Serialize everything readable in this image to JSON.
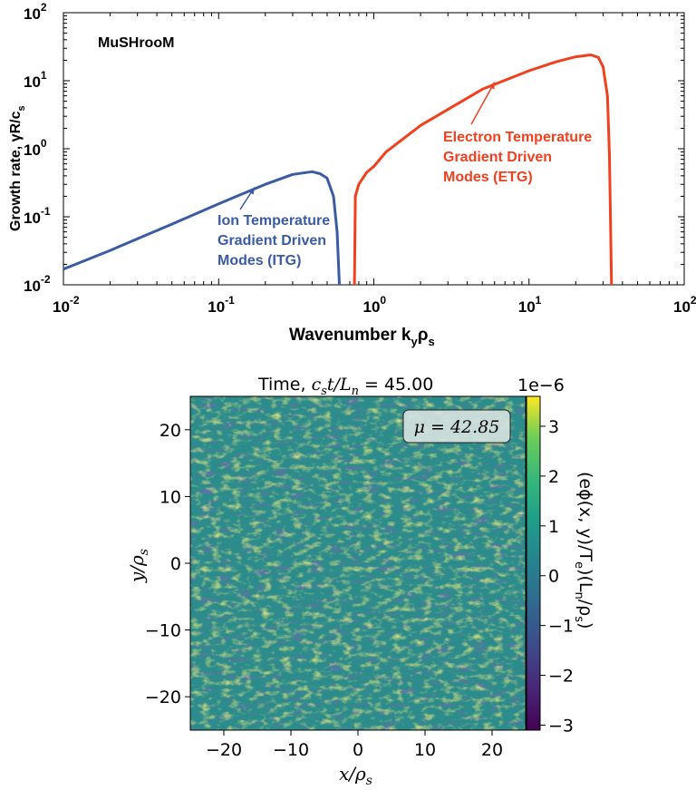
{
  "chart_data": [
    {
      "type": "line",
      "title": "",
      "annotation_top_left": "MuSHrooM",
      "xlabel": "Wavenumber  k",
      "xlabel_sub": "y",
      "xlabel_tail": "ρ",
      "xlabel_tail_sub": "s",
      "ylabel": "Growth rate, γR/c",
      "ylabel_sub": "s",
      "xscale": "log",
      "yscale": "log",
      "xlim": [
        0.01,
        100
      ],
      "ylim": [
        0.01,
        100
      ],
      "x_ticks": [
        {
          "base": "10",
          "exp": "-2"
        },
        {
          "base": "10",
          "exp": "-1"
        },
        {
          "base": "10",
          "exp": "0"
        },
        {
          "base": "10",
          "exp": "1"
        },
        {
          "base": "10",
          "exp": "2"
        }
      ],
      "y_ticks": [
        {
          "base": "10",
          "exp": "-2"
        },
        {
          "base": "10",
          "exp": "-1"
        },
        {
          "base": "10",
          "exp": "0"
        },
        {
          "base": "10",
          "exp": "1"
        },
        {
          "base": "10",
          "exp": "2"
        }
      ],
      "series": [
        {
          "color": "#3b5ba5",
          "x": [
            0.01,
            0.02,
            0.05,
            0.1,
            0.2,
            0.3,
            0.4,
            0.45,
            0.5,
            0.55,
            0.58,
            0.6
          ],
          "y": [
            0.017,
            0.032,
            0.078,
            0.155,
            0.3,
            0.42,
            0.46,
            0.43,
            0.37,
            0.2,
            0.06,
            0.01
          ]
        },
        {
          "color": "#f0401f",
          "x": [
            0.75,
            0.76,
            0.8,
            0.9,
            1.0,
            1.2,
            2,
            5,
            10,
            15,
            20,
            25,
            28,
            30,
            32,
            33,
            34
          ],
          "y": [
            0.01,
            0.2,
            0.3,
            0.45,
            0.55,
            0.9,
            2.2,
            7.5,
            14,
            19,
            22.5,
            24,
            22,
            16,
            6,
            0.8,
            0.01
          ]
        }
      ],
      "annotations": [
        {
          "lines": [
            "Ion Temperature",
            "Gradient Driven",
            "Modes (ITG)"
          ],
          "color": "#3b5ba5",
          "point_to": {
            "x": 0.17,
            "y": 0.27
          }
        },
        {
          "lines": [
            "Electron Temperature",
            "Gradient Driven",
            "Modes (ETG)"
          ],
          "color": "#f0401f",
          "point_to": {
            "x": 6,
            "y": 9.5
          }
        }
      ]
    },
    {
      "type": "heatmap",
      "title": "Time, ",
      "title_math": "c",
      "title_math_sub": "s",
      "title_math_tail": "t/L",
      "title_math_tail_sub": "n",
      "title_value": " = 45.00",
      "xlabel": "x/ρ",
      "xlabel_sub": "s",
      "ylabel": "y/ρ",
      "ylabel_sub": "s",
      "xlim": [
        -25,
        25
      ],
      "ylim": [
        -25,
        25
      ],
      "x_ticks": [
        "−20",
        "−10",
        "0",
        "10",
        "20"
      ],
      "x_tick_values": [
        -20,
        -10,
        0,
        10,
        20
      ],
      "y_ticks": [
        "20",
        "10",
        "0",
        "−10",
        "−20"
      ],
      "y_tick_values": [
        20,
        10,
        0,
        -10,
        -20
      ],
      "colormap": "viridis",
      "legend_box": "μ = 42.85",
      "colorbar": {
        "label": "(eϕ(x, y)/T",
        "label_sub": "e",
        "label_mid": ")(L",
        "label_sub2": "n",
        "label_tail": "/ρ",
        "label_sub3": "s",
        "label_end": ")",
        "offset_text": "1e−6",
        "range": [
          -3.1,
          3.6
        ],
        "ticks": [
          "3",
          "2",
          "1",
          "0",
          "−1",
          "−2",
          "−3"
        ],
        "tick_values": [
          3,
          2,
          1,
          0,
          -1,
          -2,
          -3
        ]
      }
    }
  ]
}
